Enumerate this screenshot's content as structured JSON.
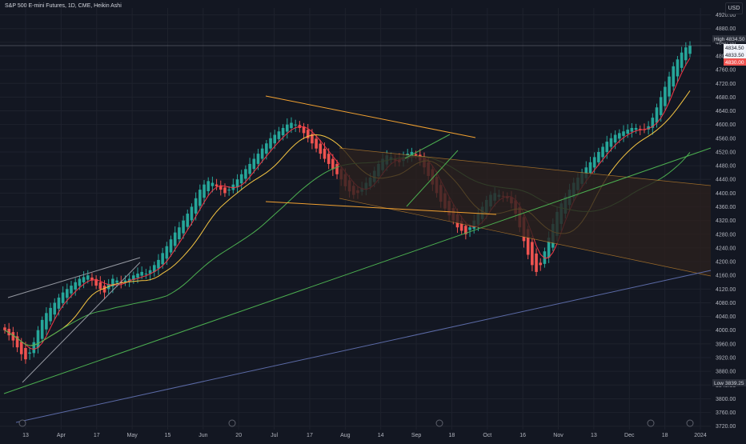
{
  "header": {
    "symbol_line": "S&P 500 E-mini Futures, 1D, CME, Heikin Ashi",
    "currency": "USD"
  },
  "colors": {
    "background": "#131722",
    "up": "#26a69a",
    "down": "#ef5350",
    "grid": "#1e222d",
    "axis_text": "#b2b5be",
    "ma_fast": "#f23645",
    "ma_mid": "#f5c542",
    "ma_slow": "#4caf50",
    "trend_orange": "#f0a030",
    "trend_green": "#4caf50",
    "trend_white": "#9598a1",
    "channel_fill": "#2a211e"
  },
  "chart_data": {
    "type": "candlestick",
    "chart_style": "Heikin Ashi",
    "interval": "1D",
    "y_axis_position": "right",
    "ylim": [
      3710,
      4940
    ],
    "y_ticks": [
      3720,
      3760,
      3800,
      3840,
      3880,
      3920,
      3960,
      4000,
      4040,
      4080,
      4120,
      4160,
      4200,
      4240,
      4280,
      4320,
      4360,
      4400,
      4440,
      4480,
      4520,
      4560,
      4600,
      4640,
      4680,
      4720,
      4760,
      4800,
      4840,
      4880,
      4920
    ],
    "x_tick_labels": [
      "13",
      "Apr",
      "17",
      "May",
      "15",
      "Jun",
      "20",
      "Jul",
      "17",
      "Aug",
      "14",
      "Sep",
      "18",
      "Oct",
      "16",
      "Nov",
      "13",
      "Dec",
      "18",
      "2024"
    ],
    "highlights": [
      {
        "label": "High",
        "value": "4834.50"
      },
      {
        "label": "Low",
        "value": "3839.25"
      }
    ],
    "price_tags": [
      "4834.50",
      "4833.50",
      "4830.00"
    ],
    "moving_average_colors": [
      "#f23645",
      "#f5c542",
      "#4caf50"
    ],
    "close_series_approx": [
      4000,
      3985,
      3970,
      3950,
      3930,
      3915,
      3935,
      3965,
      4000,
      4030,
      4050,
      4065,
      4080,
      4095,
      4110,
      4120,
      4130,
      4140,
      4150,
      4155,
      4160,
      4145,
      4130,
      4120,
      4110,
      4135,
      4150,
      4145,
      4140,
      4145,
      4150,
      4160,
      4165,
      4170,
      4165,
      4175,
      4190,
      4205,
      4225,
      4245,
      4265,
      4285,
      4300,
      4320,
      4340,
      4360,
      4385,
      4410,
      4425,
      4435,
      4430,
      4420,
      4410,
      4400,
      4410,
      4425,
      4440,
      4455,
      4470,
      4485,
      4500,
      4515,
      4530,
      4545,
      4560,
      4570,
      4580,
      4590,
      4600,
      4605,
      4600,
      4590,
      4575,
      4560,
      4545,
      4530,
      4515,
      4500,
      4485,
      4470,
      4455,
      4440,
      4420,
      4405,
      4395,
      4400,
      4415,
      4430,
      4445,
      4465,
      4485,
      4500,
      4510,
      4505,
      4495,
      4490,
      4505,
      4515,
      4520,
      4510,
      4495,
      4475,
      4450,
      4425,
      4400,
      4375,
      4355,
      4335,
      4320,
      4300,
      4290,
      4280,
      4300,
      4320,
      4340,
      4360,
      4380,
      4395,
      4400,
      4395,
      4390,
      4385,
      4370,
      4340,
      4300,
      4260,
      4220,
      4190,
      4170,
      4190,
      4230,
      4270,
      4310,
      4345,
      4370,
      4390,
      4410,
      4430,
      4445,
      4460,
      4475,
      4490,
      4505,
      4520,
      4535,
      4550,
      4560,
      4570,
      4575,
      4580,
      4585,
      4590,
      4590,
      4585,
      4585,
      4595,
      4620,
      4650,
      4680,
      4710,
      4740,
      4770,
      4790,
      4810,
      4825,
      4830
    ]
  }
}
